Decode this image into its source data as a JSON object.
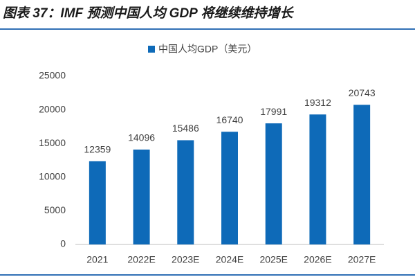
{
  "chart_data": {
    "type": "bar",
    "title": "图表 37：IMF 预测中国人均 GDP 将继续维持增长",
    "legend": "中国人均GDP（美元）",
    "categories": [
      "2021",
      "2022E",
      "2023E",
      "2024E",
      "2025E",
      "2026E",
      "2027E"
    ],
    "values": [
      12359,
      14096,
      15486,
      16740,
      17991,
      19312,
      20743
    ],
    "color": "#0e6ab8",
    "ylim": [
      0,
      25000
    ],
    "yticks": [
      0,
      5000,
      10000,
      15000,
      20000,
      25000
    ],
    "grid": false
  }
}
